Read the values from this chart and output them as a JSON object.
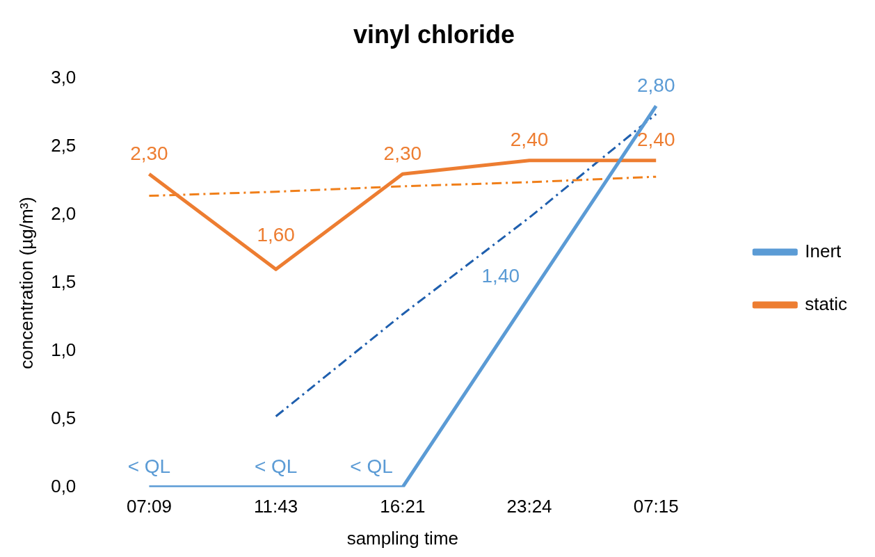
{
  "chart_data": {
    "type": "line",
    "title": "vinyl chloride",
    "xlabel": "sampling time",
    "ylabel": "concentration (µg/m³)",
    "categories": [
      "07:09",
      "11:43",
      "16:21",
      "23:24",
      "07:15"
    ],
    "series": [
      {
        "name": "Inert",
        "color": "#5b9bd5",
        "values": [
          0,
          0,
          0,
          1.4,
          2.8
        ],
        "value_labels": [
          "< QL",
          "< QL",
          "< QL",
          "1,40",
          "2,80"
        ]
      },
      {
        "name": "static",
        "color": "#ed7d31",
        "values": [
          2.3,
          1.6,
          2.3,
          2.4,
          2.4
        ],
        "value_labels": [
          "2,30",
          "1,60",
          "2,30",
          "2,40",
          "2,40"
        ]
      },
      {
        "type": "line",
        "color": "#1f5fae",
        "line_style": "dashdot",
        "values": [
          null,
          0.52,
          1.27,
          1.98,
          2.74
        ]
      },
      {
        "type": "line",
        "color": "#f07f1a",
        "line_style": "dashdot",
        "values": [
          2.14,
          2.17,
          2.21,
          2.24,
          2.28
        ]
      }
    ],
    "ylim": [
      0,
      3.0
    ],
    "yticks": [
      {
        "value": 0,
        "label": "0,0"
      },
      {
        "value": 0.5,
        "label": "0,5"
      },
      {
        "value": 1,
        "label": "1,0"
      },
      {
        "value": 1.5,
        "label": "1,5"
      },
      {
        "value": 2,
        "label": "2,0"
      },
      {
        "value": 2.5,
        "label": "2,5"
      },
      {
        "value": 3,
        "label": "3,0"
      }
    ],
    "grid": false,
    "legend": "right",
    "marker": "none"
  }
}
